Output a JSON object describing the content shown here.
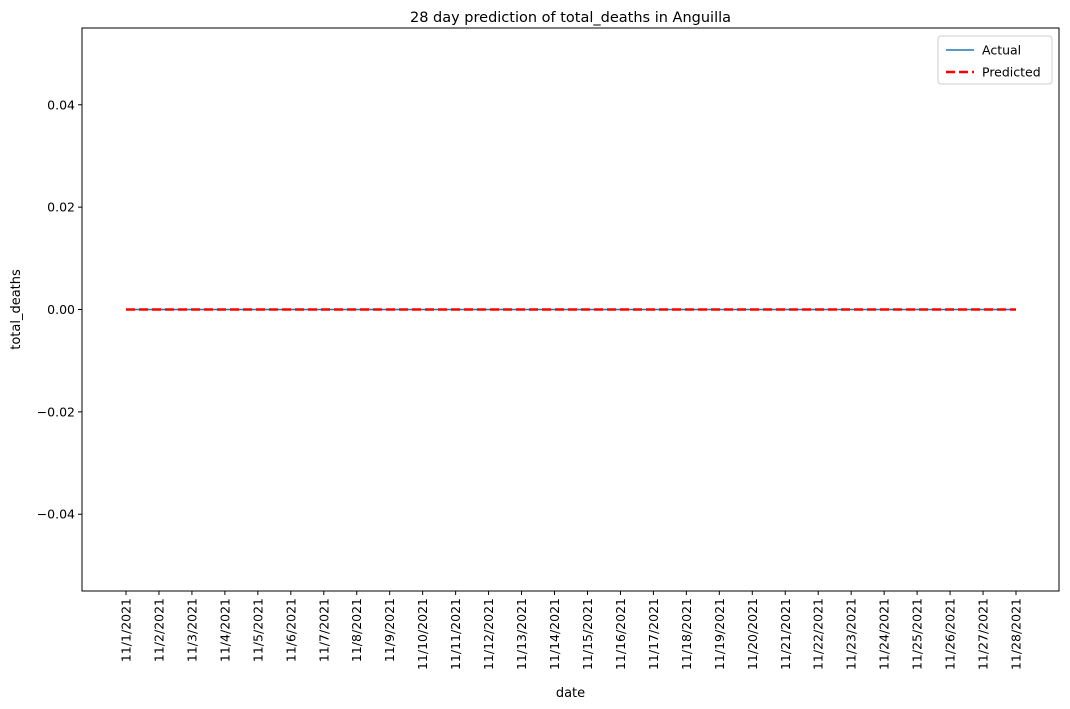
{
  "chart_data": {
    "type": "line",
    "title": "28 day prediction of total_deaths in Anguilla",
    "xlabel": "date",
    "ylabel": "total_deaths",
    "categories": [
      "11/1/2021",
      "11/2/2021",
      "11/3/2021",
      "11/4/2021",
      "11/5/2021",
      "11/6/2021",
      "11/7/2021",
      "11/8/2021",
      "11/9/2021",
      "11/10/2021",
      "11/11/2021",
      "11/12/2021",
      "11/13/2021",
      "11/14/2021",
      "11/15/2021",
      "11/16/2021",
      "11/17/2021",
      "11/18/2021",
      "11/19/2021",
      "11/20/2021",
      "11/21/2021",
      "11/22/2021",
      "11/23/2021",
      "11/24/2021",
      "11/25/2021",
      "11/26/2021",
      "11/27/2021",
      "11/28/2021"
    ],
    "series": [
      {
        "name": "Actual",
        "color": "#1f77b4",
        "style": "solid",
        "values": [
          0,
          0,
          0,
          0,
          0,
          0,
          0,
          0,
          0,
          0,
          0,
          0,
          0,
          0,
          0,
          0,
          0,
          0,
          0,
          0,
          0,
          0,
          0,
          0,
          0,
          0,
          0,
          0
        ]
      },
      {
        "name": "Predicted",
        "color": "#ff0000",
        "style": "dashed",
        "values": [
          0,
          0,
          0,
          0,
          0,
          0,
          0,
          0,
          0,
          0,
          0,
          0,
          0,
          0,
          0,
          0,
          0,
          0,
          0,
          0,
          0,
          0,
          0,
          0,
          0,
          0,
          0,
          0
        ]
      }
    ],
    "ylim": [
      -0.055,
      0.055
    ],
    "yticks": [
      "0.04",
      "0.02",
      "0.00",
      "−0.02",
      "−0.04"
    ],
    "yticks_values": [
      0.04,
      0.02,
      0.0,
      -0.02,
      -0.04
    ],
    "grid": false,
    "legend_position": "top-right"
  }
}
